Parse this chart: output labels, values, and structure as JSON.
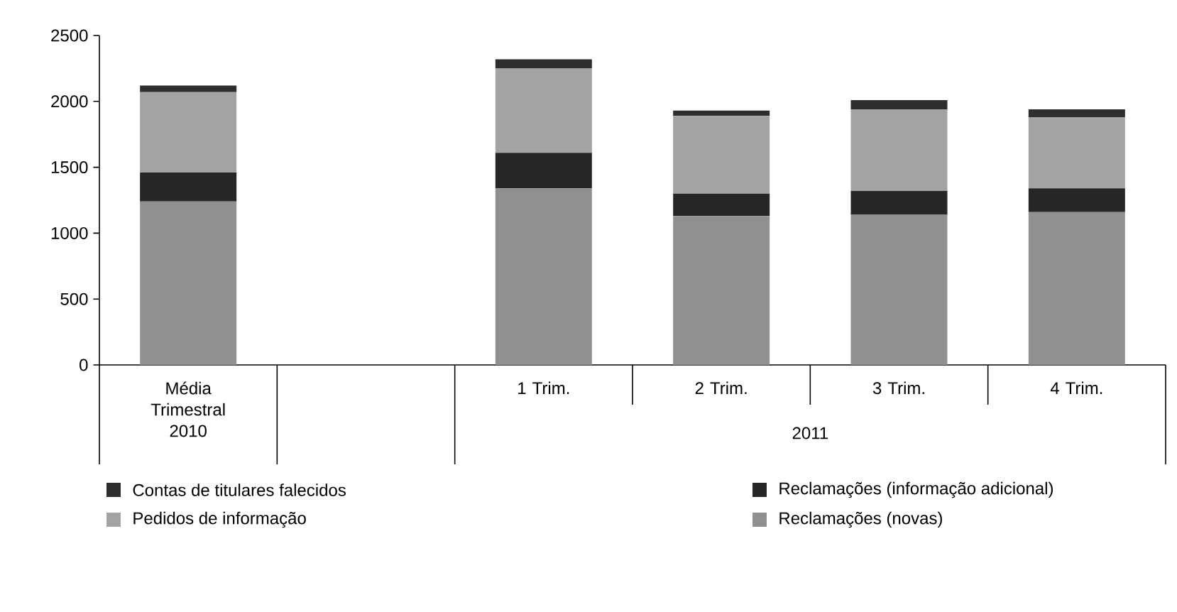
{
  "chart_data": {
    "type": "bar",
    "stacked": true,
    "categories": [
      "Média Trimestral 2010",
      null,
      "1 Trim.",
      "2 Trim.",
      "3 Trim.",
      "4 Trim."
    ],
    "series": [
      {
        "name": "Reclamações (novas)",
        "color": "#909090",
        "values": [
          1240,
          null,
          1340,
          1130,
          1140,
          1160
        ]
      },
      {
        "name": "Reclamações (informação adicional)",
        "color": "#262626",
        "values": [
          220,
          null,
          270,
          170,
          180,
          180
        ]
      },
      {
        "name": "Pedidos de informação",
        "color": "#a3a3a3",
        "values": [
          610,
          null,
          640,
          590,
          620,
          540
        ]
      },
      {
        "name": "Contas de titulares falecidos",
        "color": "#2e2e2e",
        "values": [
          50,
          null,
          70,
          40,
          70,
          60
        ]
      }
    ],
    "ylim": [
      0,
      2500
    ],
    "yticks": [
      0,
      500,
      1000,
      1500,
      2000,
      2500
    ],
    "annotations": [
      "2011"
    ],
    "legend": "bottom"
  }
}
